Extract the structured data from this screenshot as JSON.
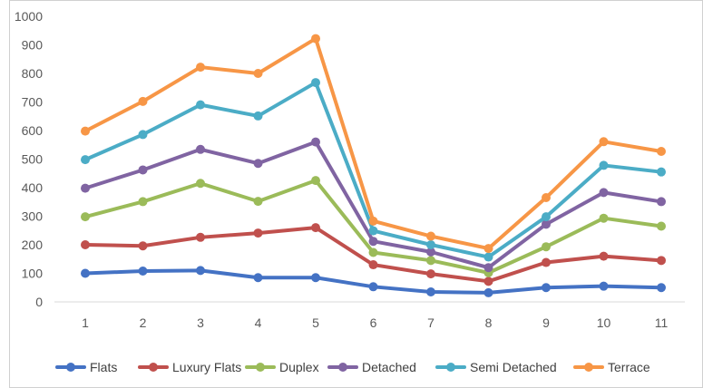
{
  "chart_data": {
    "type": "line",
    "title": "",
    "xlabel": "",
    "ylabel": "",
    "categories": [
      "1",
      "2",
      "3",
      "4",
      "5",
      "6",
      "7",
      "8",
      "9",
      "10",
      "11"
    ],
    "ylim": [
      0,
      1000
    ],
    "yticks": [
      "0",
      "100",
      "200",
      "300",
      "400",
      "500",
      "600",
      "700",
      "800",
      "900",
      "1000"
    ],
    "grid": false,
    "legend_position": "bottom",
    "series": [
      {
        "name": "Flats",
        "color": "#4472C4",
        "values": [
          100,
          108,
          110,
          85,
          85,
          53,
          35,
          32,
          50,
          55,
          50
        ]
      },
      {
        "name": "Luxury Flats",
        "color": "#C0504D",
        "values": [
          200,
          196,
          226,
          241,
          260,
          130,
          98,
          72,
          138,
          160,
          145
        ]
      },
      {
        "name": "Duplex",
        "color": "#9BBB59",
        "values": [
          298,
          351,
          415,
          352,
          425,
          173,
          145,
          102,
          193,
          293,
          265
        ]
      },
      {
        "name": "Detached",
        "color": "#8064A2",
        "values": [
          398,
          462,
          534,
          485,
          560,
          212,
          175,
          120,
          272,
          383,
          351
        ]
      },
      {
        "name": "Semi Detached",
        "color": "#4BACC6",
        "values": [
          498,
          586,
          690,
          651,
          768,
          249,
          200,
          157,
          298,
          478,
          455
        ]
      },
      {
        "name": "Terrace",
        "color": "#F79646",
        "values": [
          598,
          702,
          822,
          800,
          922,
          283,
          230,
          187,
          365,
          561,
          527
        ]
      }
    ]
  }
}
